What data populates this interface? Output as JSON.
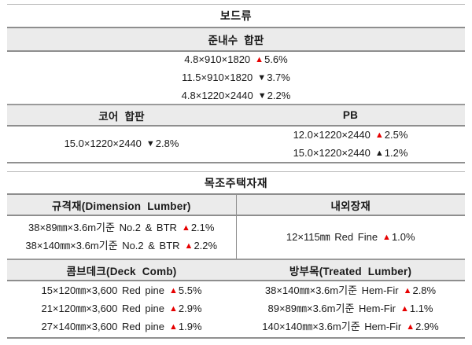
{
  "colors": {
    "up_red": "#e60000",
    "neutral_black": "#1a1a1a",
    "header_bg": "#ebebeb",
    "rule_gray": "#8e8e8e"
  },
  "board_table": {
    "title": "보드류",
    "plywood_header": "준내수 합판",
    "plywood_rows": [
      {
        "spec": "4.8×910×1820",
        "arrow": "▲",
        "pct": "5.6%",
        "arrow_color": "#e60000"
      },
      {
        "spec": "11.5×910×1820",
        "arrow": "▼",
        "pct": "3.7%",
        "arrow_color": "#1a1a1a"
      },
      {
        "spec": "4.8×1220×2440",
        "arrow": "▼",
        "pct": "2.2%",
        "arrow_color": "#1a1a1a"
      }
    ],
    "core_header": "코어 합판",
    "pb_header": "PB",
    "core_rows": [
      {
        "spec": "15.0×1220×2440",
        "arrow": "▼",
        "pct": "2.8%",
        "arrow_color": "#1a1a1a"
      }
    ],
    "pb_rows": [
      {
        "spec": "12.0×1220×2440",
        "arrow": "▲",
        "pct": "2.5%",
        "arrow_color": "#e60000"
      },
      {
        "spec": "15.0×1220×2440",
        "arrow": "▲",
        "pct": "1.2%",
        "arrow_color": "#1a1a1a"
      }
    ]
  },
  "wood_table": {
    "title": "목조주택자재",
    "dimension_header": "규격재(Dimension Lumber)",
    "interior_header": "내외장재",
    "dimension_rows": [
      {
        "spec": "38×89㎜×3.6m기준 No.2 & BTR",
        "arrow": "▲",
        "pct": "2.1%",
        "arrow_color": "#e60000"
      },
      {
        "spec": "38×140㎜×3.6m기준 No.2 & BTR",
        "arrow": "▲",
        "pct": "2.2%",
        "arrow_color": "#e60000"
      }
    ],
    "interior_rows": [
      {
        "spec": "12×115㎜ Red Fine",
        "arrow": "▲",
        "pct": "1.0%",
        "arrow_color": "#e60000"
      }
    ],
    "deck_header": "콤브데크(Deck Comb)",
    "treated_header": "방부목(Treated Lumber)",
    "deck_rows": [
      {
        "spec": "15×120㎜×3,600 Red pine",
        "arrow": "▲",
        "pct": "5.5%",
        "arrow_color": "#e60000"
      },
      {
        "spec": "21×120㎜×3,600 Red pine",
        "arrow": "▲",
        "pct": "2.9%",
        "arrow_color": "#e60000"
      },
      {
        "spec": "27×140㎜×3,600 Red pine",
        "arrow": "▲",
        "pct": "1.9%",
        "arrow_color": "#e60000"
      }
    ],
    "treated_rows": [
      {
        "spec": "38×140㎜×3.6m기준 Hem-Fir",
        "arrow": "▲",
        "pct": "2.8%",
        "arrow_color": "#e60000"
      },
      {
        "spec": "89×89㎜×3.6m기준 Hem-Fir",
        "arrow": "▲",
        "pct": "1.1%",
        "arrow_color": "#e60000"
      },
      {
        "spec": "140×140㎜×3.6m기준 Hem-Fir",
        "arrow": "▲",
        "pct": "2.9%",
        "arrow_color": "#e60000"
      }
    ]
  }
}
